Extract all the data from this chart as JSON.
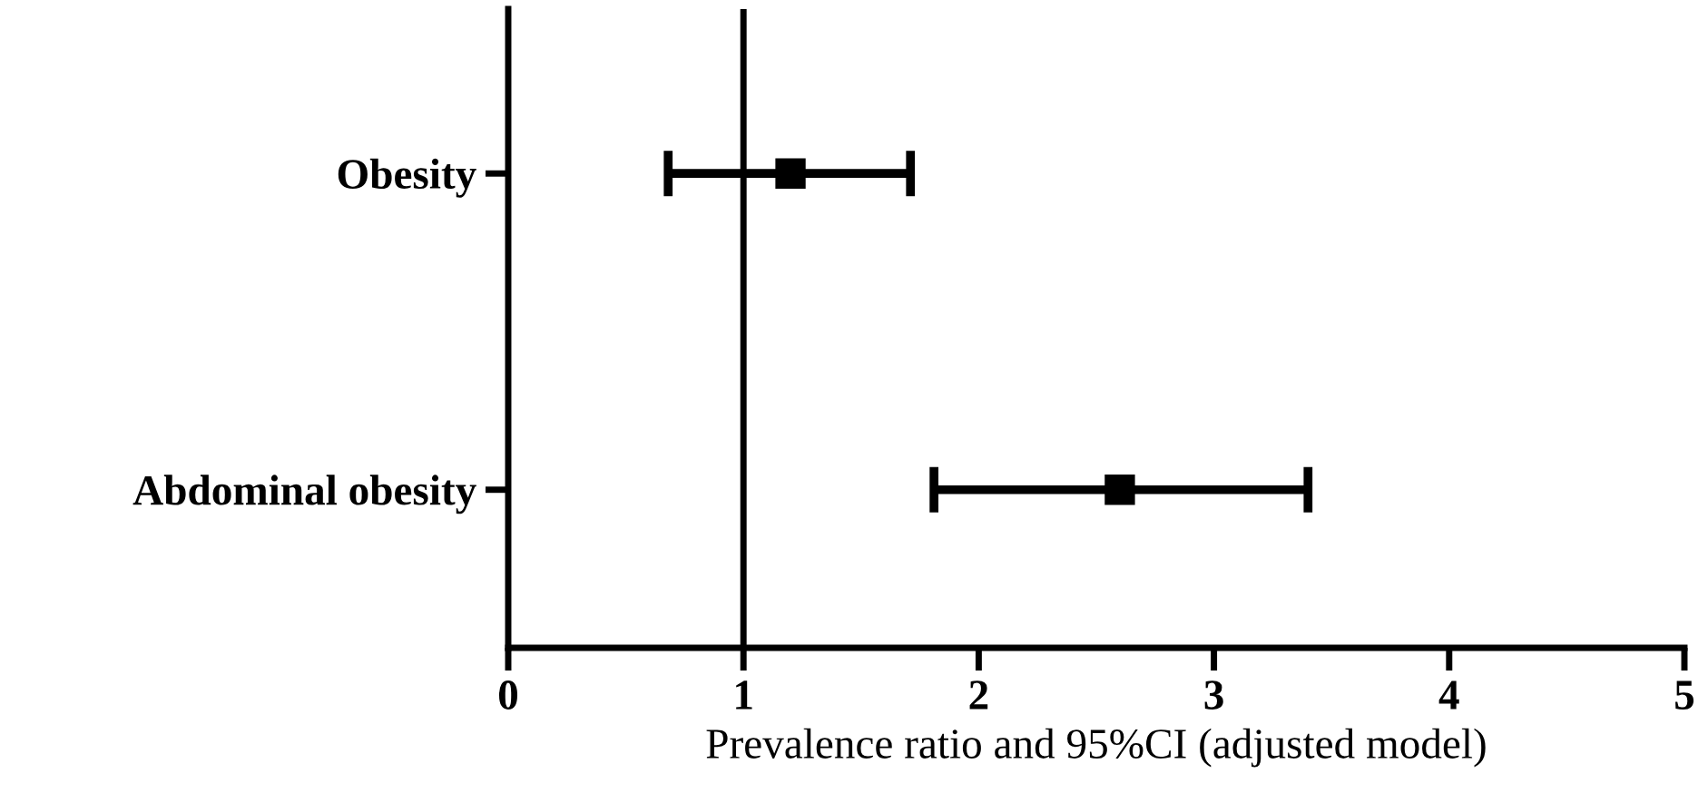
{
  "chart_data": {
    "type": "scatter",
    "orientation": "horizontal",
    "xlabel": "Prevalence ratio and 95%CI (adjusted model)",
    "categories": [
      "Obesity",
      "Abdominal obesity"
    ],
    "values": [
      1.2,
      2.6
    ],
    "errors": [
      [
        0.68,
        1.71
      ],
      [
        1.81,
        3.4
      ]
    ],
    "color": "#000000",
    "marker": "square",
    "xlim": [
      0,
      5
    ],
    "xticks": [
      0,
      1,
      2,
      3,
      4,
      5
    ],
    "ref_lines": [
      {
        "axis": "x",
        "value": 1,
        "color": "#000000"
      }
    ],
    "grid": false,
    "legend": false
  }
}
